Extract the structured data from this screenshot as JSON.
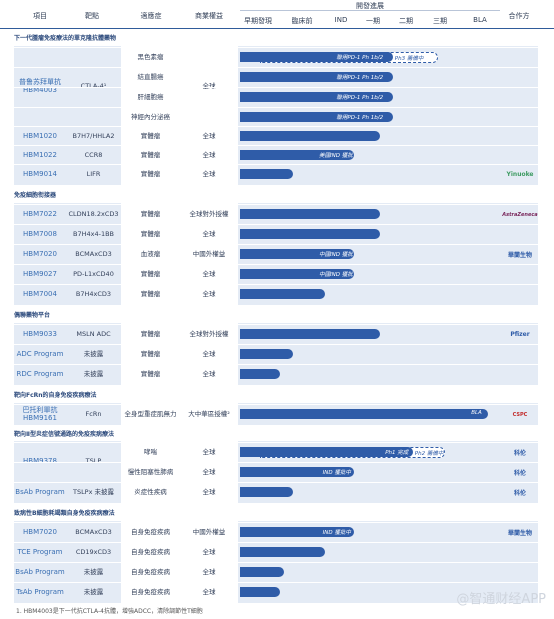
{
  "header": {
    "project": "項目",
    "target": "靶點",
    "indication": "適應症",
    "rights": "商業權益",
    "dev_status": "開發進展",
    "stages": [
      "早期發現",
      "臨床前",
      "IND",
      "一期",
      "二期",
      "三期",
      "BLA"
    ],
    "partner": "合作方"
  },
  "sections": [
    "下一代腫瘤免疫療法的單克隆抗體藥物",
    "免疫細胞衔接器",
    "偶聯藥物平台",
    "靶向FcRn的自身免疫疾病療法",
    "靶向Ⅱ型炎症信號通路的免疫疾病療法",
    "致病性B細胞耗竭類自身免疫疾病療法"
  ],
  "rows": [
    {
      "name": "普鲁苏拜單抗 HBM4003",
      "target": "CTLA-4¹",
      "indication": "黑色素瘤",
      "rights": "全球",
      "bar_stage": 4.6,
      "label": "聯用PD-1 Ph 1b/2",
      "dash_stage": 5.9,
      "dash_label": "Ph3 籌備中",
      "partner": ""
    },
    {
      "name": "",
      "target": "",
      "indication": "結直腸癌",
      "rights": "",
      "bar_stage": 4.6,
      "label": "聯用PD-1 Ph 1b/2",
      "partner": ""
    },
    {
      "name": "",
      "target": "",
      "indication": "肝細胞癌",
      "rights": "",
      "bar_stage": 4.6,
      "label": "聯用PD-1 Ph 1b/2",
      "partner": ""
    },
    {
      "name": "",
      "target": "",
      "indication": "神經內分泌癌",
      "rights": "",
      "bar_stage": 4.6,
      "label": "聯用PD-1 Ph 1b/2",
      "partner": ""
    },
    {
      "name": "HBM1020",
      "target": "B7H7/HHLA2",
      "indication": "實體瘤",
      "rights": "全球",
      "bar_stage": 4.2,
      "label": "",
      "partner": ""
    },
    {
      "name": "HBM1022",
      "target": "CCR8",
      "indication": "實體瘤",
      "rights": "全球",
      "bar_stage": 3.4,
      "label": "美國IND 獲批",
      "partner": ""
    },
    {
      "name": "HBM9014",
      "target": "LIFR",
      "indication": "實體瘤",
      "rights": "全球",
      "bar_stage": 1.8,
      "label": "",
      "partner": "Yinuoke"
    },
    {
      "name": "HBM7022",
      "target": "CLDN18.2xCD3",
      "indication": "實體瘤",
      "rights": "全球對外授權",
      "bar_stage": 4.2,
      "label": "",
      "partner": "AstraZeneca"
    },
    {
      "name": "HBM7008",
      "target": "B7H4x4-1BB",
      "indication": "實體瘤",
      "rights": "全球",
      "bar_stage": 4.2,
      "label": "",
      "partner": ""
    },
    {
      "name": "HBM7020",
      "target": "BCMAxCD3",
      "indication": "血液瘤",
      "rights": "中國外權益",
      "bar_stage": 3.4,
      "label": "中國IND 獲批",
      "partner": "Hualan"
    },
    {
      "name": "HBM9027",
      "target": "PD-L1xCD40",
      "indication": "實體瘤",
      "rights": "全球",
      "bar_stage": 3.4,
      "label": "中國IND 獲批",
      "partner": ""
    },
    {
      "name": "HBM7004",
      "target": "B7H4xCD3",
      "indication": "實體瘤",
      "rights": "全球",
      "bar_stage": 2.6,
      "label": "",
      "partner": ""
    },
    {
      "name": "HBM9033",
      "target": "MSLN ADC",
      "indication": "實體瘤",
      "rights": "全球對外授權",
      "bar_stage": 4.2,
      "label": "",
      "partner": "Pfizer"
    },
    {
      "name": "ADC Program",
      "target": "未披露",
      "indication": "實體瘤",
      "rights": "全球",
      "bar_stage": 1.8,
      "label": "",
      "partner": ""
    },
    {
      "name": "RDC Program",
      "target": "未披露",
      "indication": "實體瘤",
      "rights": "全球",
      "bar_stage": 1.5,
      "label": "",
      "partner": ""
    },
    {
      "name": "巴托利單抗 HBM9161",
      "target": "FcRn",
      "indication": "全身型重症肌無力",
      "rights": "大中華區授權²",
      "bar_stage": 7,
      "label": "BLA",
      "partner": "CSPC"
    },
    {
      "name": "HBM9378",
      "target": "TSLP",
      "indication": "哮喘",
      "rights": "全球",
      "bar_stage": 5.2,
      "label": "Ph1 完成",
      "dash_stage": 6.1,
      "dash_label": "Ph2 籌備中",
      "partner": "Kelun"
    },
    {
      "name": "",
      "target": "",
      "indication": "慢性阻塞性肺病",
      "rights": "全球",
      "bar_stage": 3.4,
      "label": "IND 獲批中",
      "partner": "Kelun"
    },
    {
      "name": "BsAb Program",
      "target": "TSLPx 未披露",
      "indication": "炎症性疾病",
      "rights": "全球",
      "bar_stage": 1.8,
      "label": "",
      "partner": "Kelun"
    },
    {
      "name": "HBM7020",
      "target": "BCMAxCD3",
      "indication": "自身免疫疾病",
      "rights": "中國外權益",
      "bar_stage": 3.4,
      "label": "IND 獲批中",
      "partner": "Hualan"
    },
    {
      "name": "TCE Program",
      "target": "CD19xCD3",
      "indication": "自身免疫疾病",
      "rights": "全球",
      "bar_stage": 2.6,
      "label": "",
      "partner": ""
    },
    {
      "name": "BsAb Program",
      "target": "未披露",
      "indication": "自身免疫疾病",
      "rights": "全球",
      "bar_stage": 1.6,
      "label": "",
      "partner": ""
    },
    {
      "name": "TsAb Program",
      "target": "未披露",
      "indication": "自身免疫疾病",
      "rights": "全球",
      "bar_stage": 1.5,
      "label": "",
      "partner": ""
    }
  ],
  "partners_text": {
    "Yinuoke": "Yinuoke",
    "AstraZeneca": "AstraZeneca",
    "Hualan": "華蘭生物",
    "Pfizer": "Pfizer",
    "CSPC": "CSPC",
    "Kelun": "科伦"
  },
  "footnote": "1. HBM4003是下一代抗CTLA-4抗體，增強ADCC，清除調節性T細胞",
  "watermark": "@智通财经APP",
  "colors": {
    "bar": "#2f5ca8",
    "band": "#e4ebf5",
    "name": "#3a6fb3"
  }
}
